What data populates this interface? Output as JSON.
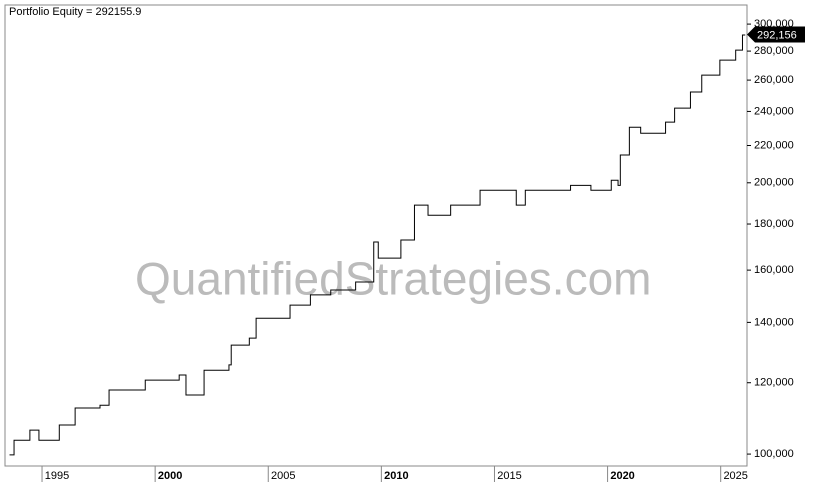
{
  "chart_data": {
    "type": "step-line",
    "title": "Portfolio Equity = 292155.9",
    "watermark": "QuantifiedStrategies.com",
    "log_scale": true,
    "color": "#000000",
    "x": [
      1992.9,
      1993.1,
      1993.8,
      1994.2,
      1995.1,
      1995.8,
      1996.9,
      1997.3,
      1998.9,
      2000.4,
      2000.7,
      2001.5,
      2002.6,
      2002.7,
      2003.5,
      2003.8,
      2005.3,
      2006.2,
      2007.1,
      2008.2,
      2009.0,
      2009.2,
      2010.2,
      2010.8,
      2011.4,
      2012.4,
      2013.7,
      2015.0,
      2015.3,
      2015.7,
      2017.7,
      2018.6,
      2019.5,
      2019.8,
      2019.9,
      2020.3,
      2020.8,
      2021.9,
      2022.3,
      2023.0,
      2023.5,
      2024.3,
      2025.0,
      2025.3,
      2025.4
    ],
    "values": [
      99800,
      103600,
      106300,
      103600,
      107700,
      112500,
      113300,
      117800,
      120800,
      122400,
      116300,
      123900,
      125600,
      132100,
      134500,
      141500,
      146300,
      150200,
      152100,
      155200,
      171900,
      165000,
      172800,
      188900,
      184100,
      188900,
      196200,
      196200,
      188900,
      196200,
      198700,
      196200,
      201300,
      198700,
      214700,
      230500,
      227000,
      233500,
      242000,
      252200,
      263300,
      273600,
      280700,
      291800,
      292155.9
    ],
    "last_value_label": "292,156",
    "xlim": [
      1992.7,
      2025.5
    ],
    "xticks": [
      1995,
      2000,
      2005,
      2010,
      2015,
      2020,
      2025
    ],
    "ylim": [
      97000,
      315000
    ],
    "yticks": [
      {
        "value": 100000,
        "label": "100,000"
      },
      {
        "value": 120000,
        "label": "120,000"
      },
      {
        "value": 140000,
        "label": "140,000"
      },
      {
        "value": 160000,
        "label": "160,000"
      },
      {
        "value": 180000,
        "label": "180,000"
      },
      {
        "value": 200000,
        "label": "200,000"
      },
      {
        "value": 220000,
        "label": "220,000"
      },
      {
        "value": 240000,
        "label": "240,000"
      },
      {
        "value": 260000,
        "label": "260,000"
      },
      {
        "value": 280000,
        "label": "280,000"
      },
      {
        "value": 300000,
        "label": "300,000"
      }
    ]
  }
}
